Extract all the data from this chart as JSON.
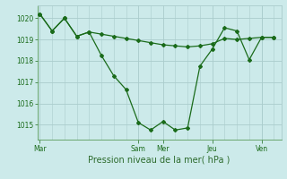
{
  "bg_color": "#cceaea",
  "grid_color": "#aacccc",
  "line_color": "#1a6b1a",
  "marker_color": "#1a6b1a",
  "xlabel": "Pression niveau de la mer( hPa )",
  "xlabel_color": "#2d6b2d",
  "xtick_labels": [
    "Mar",
    "Sam",
    "Mer",
    "Jeu",
    "Ven"
  ],
  "xtick_positions": [
    0.0,
    4.0,
    5.0,
    7.0,
    9.0
  ],
  "ylim": [
    1014.3,
    1020.6
  ],
  "ytick_values": [
    1015,
    1016,
    1017,
    1018,
    1019,
    1020
  ],
  "xlim": [
    -0.1,
    9.8
  ],
  "line1_x": [
    0,
    0.5,
    1,
    1.5,
    2,
    2.5,
    3,
    3.5,
    4,
    4.5,
    5,
    5.5,
    6,
    6.5,
    7,
    7.5,
    8,
    8.5,
    9,
    9.5
  ],
  "line1_y": [
    1020.2,
    1019.4,
    1020.0,
    1019.15,
    1019.35,
    1019.25,
    1019.15,
    1019.05,
    1018.95,
    1018.85,
    1018.75,
    1018.7,
    1018.65,
    1018.7,
    1018.8,
    1019.05,
    1019.0,
    1019.05,
    1019.1,
    1019.1
  ],
  "line2_x": [
    0,
    0.5,
    1,
    1.5,
    2,
    2.5,
    3,
    3.5,
    4,
    4.5,
    5,
    5.5,
    6,
    6.5,
    7,
    7.5,
    8,
    8.5,
    9,
    9.5
  ],
  "line2_y": [
    1020.2,
    1019.4,
    1020.0,
    1019.15,
    1019.35,
    1018.25,
    1017.3,
    1016.65,
    1015.1,
    1014.75,
    1015.15,
    1014.75,
    1014.85,
    1017.75,
    1018.55,
    1019.55,
    1019.4,
    1018.05,
    1019.1,
    1019.1
  ]
}
